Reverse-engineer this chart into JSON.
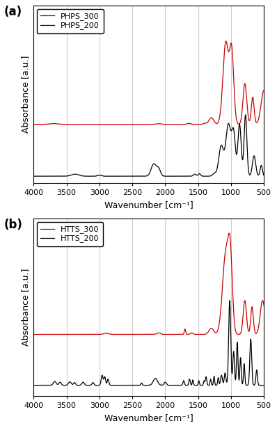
{
  "title_a": "(a)",
  "title_b": "(b)",
  "xlabel": "Wavenumber [cm⁻¹]",
  "ylabel": "Absorbance [a.u.]",
  "xlim": [
    4000,
    500
  ],
  "xgrid_lines": [
    3500,
    3000,
    2500,
    2000,
    1500,
    1000
  ],
  "xticks": [
    4000,
    3500,
    3000,
    2500,
    2000,
    1500,
    1000,
    500
  ],
  "legend_a": [
    "PHPS_300",
    "PHPS_200"
  ],
  "legend_b": [
    "HTTS_300",
    "HTTS_200"
  ],
  "line_colors": [
    "#cc0000",
    "#000000"
  ],
  "background_color": "#ffffff",
  "figsize": [
    3.98,
    6.15
  ],
  "dpi": 100
}
